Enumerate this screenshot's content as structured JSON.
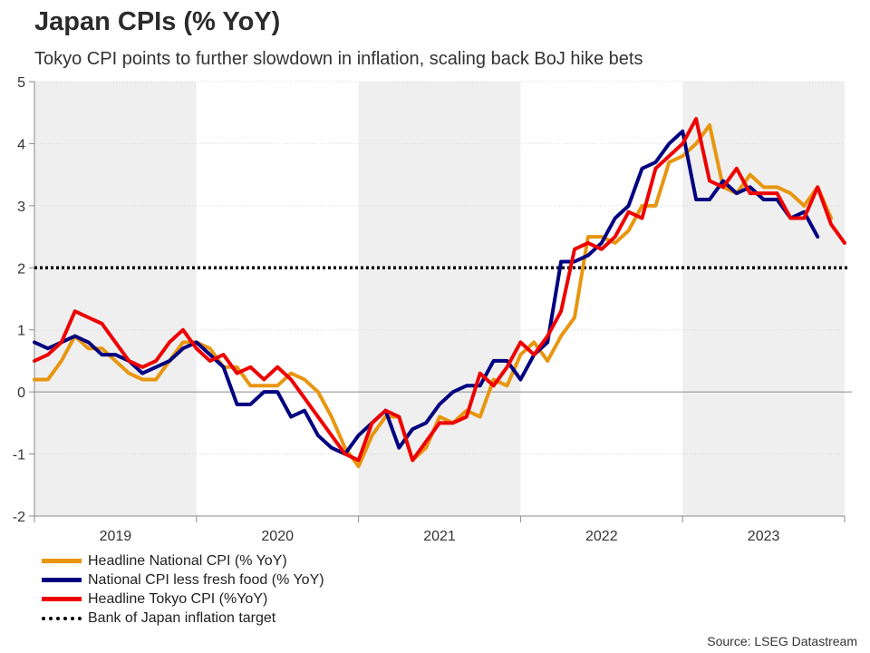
{
  "chart_data": {
    "type": "line",
    "title": "Japan CPIs (% YoY)",
    "subtitle": "Tokyo CPI points to further slowdown in inflation, scaling back BoJ hike bets",
    "source": "Source: LSEG Datastream",
    "xlabel": "",
    "ylabel": "",
    "ylim": [
      -2,
      5
    ],
    "yticks": [
      "-2",
      "-1",
      "0",
      "1",
      "2",
      "3",
      "4",
      "5"
    ],
    "year_bands": [
      {
        "label": "2019",
        "shaded": true
      },
      {
        "label": "2020",
        "shaded": false
      },
      {
        "label": "2021",
        "shaded": true
      },
      {
        "label": "2022",
        "shaded": false
      },
      {
        "label": "2023",
        "shaded": true
      }
    ],
    "x_start": "2018-12",
    "series": [
      {
        "name": "Headline National CPI (% YoY)",
        "color": "#E8960F",
        "values": [
          0.2,
          0.2,
          0.5,
          0.9,
          0.7,
          0.7,
          0.5,
          0.3,
          0.2,
          0.2,
          0.5,
          0.8,
          0.8,
          0.7,
          0.4,
          0.4,
          0.1,
          0.1,
          0.1,
          0.3,
          0.2,
          0.0,
          -0.4,
          -0.9,
          -1.2,
          -0.7,
          -0.4,
          -0.4,
          -1.1,
          -0.9,
          -0.4,
          -0.5,
          -0.3,
          -0.4,
          0.2,
          0.1,
          0.6,
          0.8,
          0.5,
          0.9,
          1.2,
          2.5,
          2.5,
          2.4,
          2.6,
          3.0,
          3.0,
          3.7,
          3.8,
          4.0,
          4.3,
          3.3,
          3.2,
          3.5,
          3.3,
          3.3,
          3.2,
          3.0,
          3.3,
          2.8
        ]
      },
      {
        "name": "National CPI less fresh food (% YoY)",
        "color": "#000080",
        "values": [
          0.8,
          0.7,
          0.8,
          0.9,
          0.8,
          0.6,
          0.6,
          0.5,
          0.3,
          0.4,
          0.5,
          0.7,
          0.8,
          0.6,
          0.4,
          -0.2,
          -0.2,
          0.0,
          0.0,
          -0.4,
          -0.3,
          -0.7,
          -0.9,
          -1.0,
          -0.7,
          -0.5,
          -0.3,
          -0.9,
          -0.6,
          -0.5,
          -0.2,
          0.0,
          0.1,
          0.1,
          0.5,
          0.5,
          0.2,
          0.6,
          0.8,
          2.1,
          2.1,
          2.2,
          2.4,
          2.8,
          3.0,
          3.6,
          3.7,
          4.0,
          4.2,
          3.1,
          3.1,
          3.4,
          3.2,
          3.3,
          3.1,
          3.1,
          2.8,
          2.9,
          2.5
        ]
      },
      {
        "name": "Headline Tokyo CPI (%YoY)",
        "color": "#EE0000",
        "values": [
          0.5,
          0.6,
          0.8,
          1.3,
          1.2,
          1.1,
          0.8,
          0.5,
          0.4,
          0.5,
          0.8,
          1.0,
          0.7,
          0.5,
          0.6,
          0.3,
          0.4,
          0.2,
          0.4,
          0.2,
          -0.1,
          -0.4,
          -0.7,
          -1.0,
          -1.1,
          -0.5,
          -0.3,
          -0.4,
          -1.1,
          -0.8,
          -0.5,
          -0.5,
          -0.4,
          0.3,
          0.1,
          0.4,
          0.8,
          0.6,
          0.9,
          1.3,
          2.3,
          2.4,
          2.3,
          2.5,
          2.9,
          2.8,
          3.6,
          3.8,
          4.0,
          4.4,
          3.4,
          3.3,
          3.6,
          3.2,
          3.2,
          3.2,
          2.8,
          2.8,
          3.3,
          2.7,
          2.4
        ]
      }
    ],
    "reference_line": {
      "name": "Bank of Japan inflation target",
      "value": 2,
      "color": "#000000"
    }
  }
}
